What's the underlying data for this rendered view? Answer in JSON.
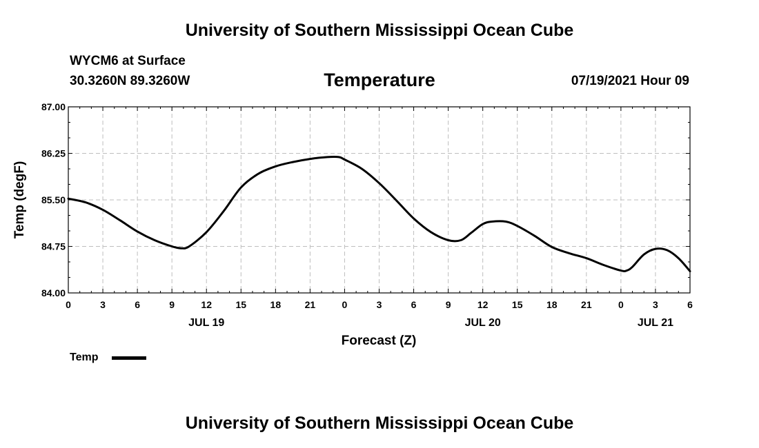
{
  "header": {
    "top_title": "University of Southern Mississippi Ocean Cube",
    "station": "WYCM6 at Surface",
    "coords": "30.3260N  89.3260W",
    "variable_title": "Temperature",
    "datetime": "07/19/2021 Hour 09"
  },
  "footer": {
    "bottom_title": "University of Southern Mississippi Ocean Cube"
  },
  "legend": {
    "label": "Temp"
  },
  "chart_data": {
    "type": "line",
    "title": "Temperature",
    "xlabel": "Forecast (Z)",
    "ylabel": "Temp (degF)",
    "ylim": [
      84.0,
      87.0
    ],
    "xlim": [
      0,
      54
    ],
    "y_ticks": [
      "84.00",
      "84.75",
      "85.50",
      "86.25",
      "87.00"
    ],
    "y_tick_values": [
      84.0,
      84.75,
      85.5,
      86.25,
      87.0
    ],
    "x_tick_labels": [
      "0",
      "3",
      "6",
      "9",
      "12",
      "15",
      "18",
      "21",
      "0",
      "3",
      "6",
      "9",
      "12",
      "15",
      "18",
      "21",
      "0",
      "3",
      "6"
    ],
    "date_labels": [
      {
        "label": "JUL 19",
        "x": 12
      },
      {
        "label": "JUL 20",
        "x": 36
      },
      {
        "label": "JUL 21",
        "x": 51
      }
    ],
    "grid": true,
    "legend_position": "bottom-left",
    "series": [
      {
        "name": "Temp",
        "color": "#000000",
        "x": [
          0,
          1.5,
          3,
          4.5,
          6,
          7.5,
          9,
          9.8,
          10.5,
          12,
          13.5,
          15,
          16.5,
          18,
          19.5,
          21,
          22.5,
          23.5,
          24,
          25.5,
          27,
          28.5,
          30,
          31.5,
          33,
          34.1,
          35,
          36,
          36.8,
          38,
          39,
          40.5,
          42,
          43.5,
          45,
          46.5,
          48,
          48.5,
          49,
          50,
          51,
          52,
          53,
          54
        ],
        "values": [
          85.52,
          85.46,
          85.34,
          85.17,
          84.99,
          84.85,
          84.75,
          84.72,
          84.75,
          84.98,
          85.32,
          85.7,
          85.92,
          86.04,
          86.11,
          86.16,
          86.19,
          86.19,
          86.15,
          86.0,
          85.77,
          85.49,
          85.2,
          84.98,
          84.85,
          84.85,
          84.97,
          85.11,
          85.15,
          85.15,
          85.08,
          84.92,
          84.74,
          84.64,
          84.56,
          84.45,
          84.36,
          84.36,
          84.42,
          84.62,
          84.71,
          84.69,
          84.56,
          84.35
        ]
      }
    ]
  }
}
